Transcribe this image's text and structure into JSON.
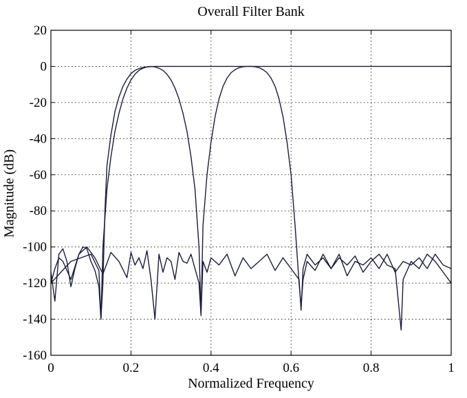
{
  "chart_data": {
    "type": "line",
    "title": "Overall Filter Bank",
    "xlabel": "Normalized Frequency",
    "ylabel": "Magnitude (dB)",
    "xlim": [
      0,
      1
    ],
    "ylim": [
      -160,
      20
    ],
    "xticks": [
      0,
      0.2,
      0.4,
      0.6,
      0.8,
      1
    ],
    "xtick_labels": [
      "0",
      "0.2",
      "0.4",
      "0.6",
      "0.8",
      "1"
    ],
    "yticks": [
      20,
      0,
      -20,
      -40,
      -60,
      -80,
      -100,
      -120,
      -140,
      -160
    ],
    "ytick_labels": [
      "20",
      "0",
      "-20",
      "-40",
      "-60",
      "-80",
      "-100",
      "-120",
      "-140",
      "-160"
    ],
    "grid": true,
    "line_color": "#1a1a3a",
    "series": [
      {
        "x": [
          0,
          0.01,
          0.02,
          0.03,
          0.04,
          0.05,
          0.06,
          0.07,
          0.08,
          0.09,
          0.1,
          0.11,
          0.12,
          0.125,
          0.13,
          0.135,
          0.14,
          0.15,
          0.16,
          0.17,
          0.18,
          0.19,
          0.2,
          0.21,
          0.22,
          0.23,
          0.24,
          0.25,
          0.26,
          0.27,
          0.28,
          0.29,
          0.3,
          0.31,
          0.32,
          0.33,
          0.34,
          0.35,
          0.36,
          0.37,
          0.375,
          0.38,
          0.39,
          0.4,
          0.42,
          0.44,
          0.46,
          0.48,
          0.5,
          0.52,
          0.54,
          0.56,
          0.58,
          0.6,
          0.62,
          0.64,
          0.66,
          0.68,
          0.7,
          0.72,
          0.74,
          0.76,
          0.78,
          0.8,
          0.82,
          0.84,
          0.86,
          0.875,
          0.88,
          0.9,
          0.92,
          0.94,
          0.96,
          0.98,
          1
        ],
        "y": [
          -114,
          -130,
          -104,
          -101,
          -108,
          -122,
          -112,
          -104,
          -100,
          -101,
          -108,
          -113,
          -122,
          -140,
          -120,
          -80,
          -55,
          -38,
          -25,
          -17,
          -11,
          -7,
          -4,
          -2.2,
          -1.2,
          -0.6,
          -0.3,
          -0.1,
          0,
          0,
          0,
          0,
          0,
          0,
          0,
          0,
          0,
          0,
          0,
          0,
          0,
          0,
          0,
          0,
          0,
          0,
          0,
          0,
          0,
          0,
          0,
          0,
          0,
          0,
          0,
          0,
          0,
          0,
          0,
          0,
          0,
          0,
          0,
          0,
          0,
          0,
          0,
          0,
          0,
          0,
          0,
          0,
          0,
          0,
          0
        ]
      },
      {
        "x": [
          0,
          0.01,
          0.02,
          0.03,
          0.05,
          0.07,
          0.09,
          0.11,
          0.13,
          0.15,
          0.17,
          0.19,
          0.2,
          0.21,
          0.22,
          0.23,
          0.24,
          0.25,
          0.26,
          0.27,
          0.28,
          0.29,
          0.3,
          0.31,
          0.32,
          0.33,
          0.34,
          0.35,
          0.36,
          0.37,
          0.375,
          0.38,
          0.39,
          0.4,
          0.41,
          0.42,
          0.43,
          0.44,
          0.45,
          0.46,
          0.47,
          0.48,
          0.49,
          0.5,
          0.51,
          0.52,
          0.53,
          0.54,
          0.55,
          0.56,
          0.57,
          0.58,
          0.59,
          0.6,
          0.61,
          0.62,
          0.625,
          0.63,
          0.64,
          0.66,
          0.68,
          0.7,
          0.72,
          0.74,
          0.76,
          0.78,
          0.8,
          0.82,
          0.84,
          0.86,
          0.875,
          0.88,
          0.9,
          0.92,
          0.94,
          0.96,
          0.98,
          1
        ],
        "y": [
          -120,
          -112,
          -106,
          -108,
          -118,
          -104,
          -100,
          -106,
          -115,
          -103,
          -108,
          -117,
          -103,
          -110,
          -106,
          -112,
          -102,
          -118,
          -140,
          -104,
          -114,
          -106,
          -108,
          -118,
          -103,
          -108,
          -109,
          -104,
          -112,
          -120,
          -138,
          -88,
          -60,
          -42,
          -28,
          -18,
          -11,
          -6.5,
          -3.5,
          -1.8,
          -0.7,
          -0.2,
          0,
          0,
          -0.2,
          -0.7,
          -1.8,
          -3.5,
          -6.5,
          -11,
          -18,
          -28,
          -42,
          -60,
          -88,
          -120,
          -133,
          -118,
          -108,
          -113,
          -104,
          -112,
          -106,
          -110,
          -105,
          -114,
          -108,
          -104,
          -110,
          -112,
          -146,
          -118,
          -108,
          -112,
          -104,
          -108,
          -114,
          -120
        ]
      },
      {
        "x": [
          0,
          0.05,
          0.1,
          0.12,
          0.125,
          0.13,
          0.14,
          0.15,
          0.16,
          0.17,
          0.18,
          0.19,
          0.2,
          0.21,
          0.22,
          0.23,
          0.24,
          0.25,
          0.26,
          0.27,
          0.28,
          0.29,
          0.3,
          0.31,
          0.32,
          0.33,
          0.34,
          0.35,
          0.36,
          0.37,
          0.375,
          0.38,
          0.39,
          0.4,
          0.42,
          0.44,
          0.46,
          0.48,
          0.5,
          0.52,
          0.54,
          0.56,
          0.58,
          0.6,
          0.62,
          0.625,
          0.63,
          0.64,
          0.66,
          0.68,
          0.7,
          0.72,
          0.74,
          0.76,
          0.78,
          0.8,
          0.82,
          0.84,
          0.86,
          0.88,
          0.9,
          0.92,
          0.94,
          0.96,
          0.98,
          1
        ],
        "y": [
          -120,
          -108,
          -104,
          -113,
          -140,
          -100,
          -68,
          -50,
          -36,
          -26,
          -18,
          -12,
          -7.5,
          -4.3,
          -2.2,
          -1,
          -0.3,
          0,
          -0.3,
          -1,
          -2.2,
          -4.3,
          -7.5,
          -12,
          -18,
          -26,
          -36,
          -50,
          -68,
          -100,
          -137,
          -108,
          -114,
          -106,
          -110,
          -104,
          -116,
          -106,
          -112,
          -108,
          -104,
          -113,
          -106,
          -112,
          -118,
          -135,
          -112,
          -104,
          -110,
          -106,
          -112,
          -104,
          -116,
          -108,
          -110,
          -106,
          -112,
          -104,
          -114,
          -108,
          -110,
          -106,
          -112,
          -104,
          -110,
          -112
        ]
      }
    ]
  }
}
